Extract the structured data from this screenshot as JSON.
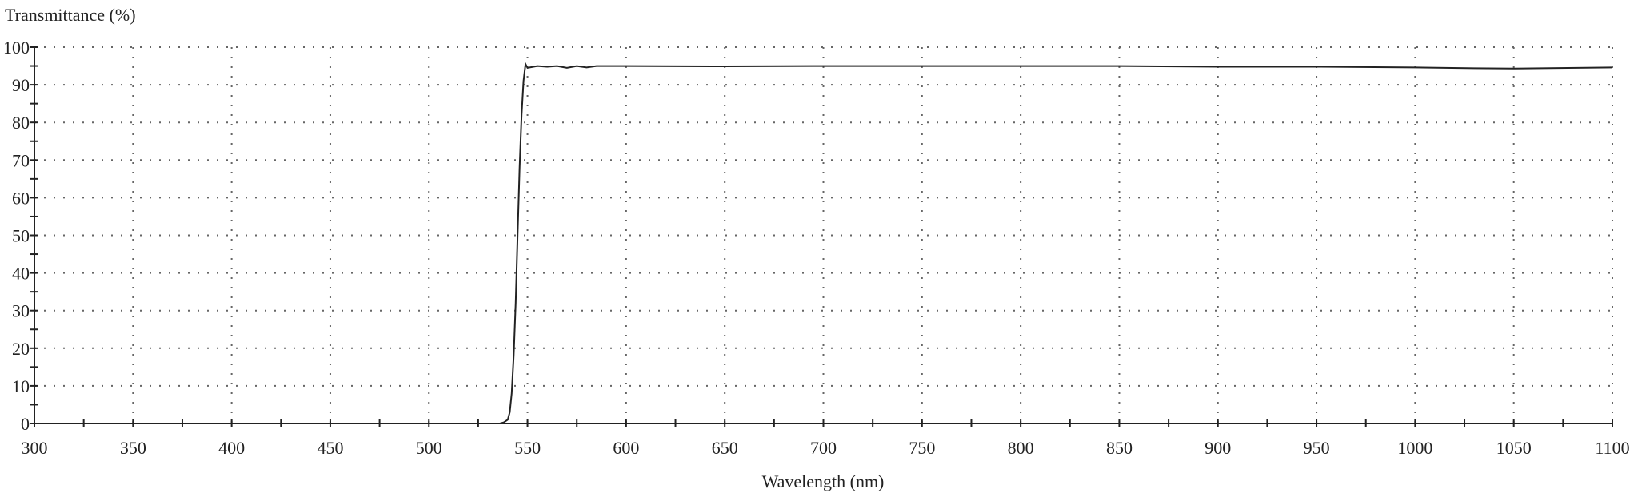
{
  "chart_data": {
    "type": "line",
    "title": "",
    "ylabel": "Transmittance (%)",
    "xlabel": "Wavelength (nm)",
    "xlim": [
      300,
      1100
    ],
    "ylim": [
      0,
      100
    ],
    "x_ticks": [
      300,
      350,
      400,
      450,
      500,
      550,
      600,
      650,
      700,
      750,
      800,
      850,
      900,
      950,
      1000,
      1050,
      1100
    ],
    "y_ticks": [
      0,
      10,
      20,
      30,
      40,
      50,
      60,
      70,
      80,
      90,
      100
    ],
    "grid": "dotted",
    "line_color": "#222222",
    "series": [
      {
        "x": [
          300,
          530,
          536,
          538,
          540,
          541,
          542,
          543,
          544,
          545,
          546,
          547,
          548,
          549,
          550,
          555,
          560,
          565,
          570,
          575,
          580,
          585,
          590,
          600,
          650,
          700,
          750,
          800,
          850,
          900,
          950,
          1000,
          1030,
          1050,
          1100
        ],
        "y": [
          0,
          0,
          0,
          0.3,
          1,
          3,
          8,
          18,
          32,
          50,
          68,
          82,
          91,
          95.5,
          94.5,
          95,
          94.8,
          95,
          94.5,
          95,
          94.6,
          95,
          95,
          95,
          94.9,
          95,
          95,
          95,
          95,
          94.8,
          94.8,
          94.6,
          94.4,
          94.3,
          94.6
        ]
      }
    ]
  }
}
